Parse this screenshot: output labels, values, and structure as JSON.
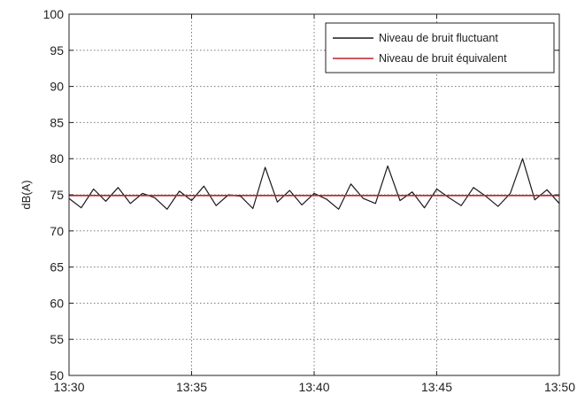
{
  "chart_data": {
    "type": "line",
    "title": "",
    "xlabel": "",
    "ylabel": "dB(A)",
    "x_ticks": [
      "13:30",
      "13:35",
      "13:40",
      "13:45",
      "13:50"
    ],
    "xlim": [
      "13:30",
      "13:50"
    ],
    "y_ticks": [
      50,
      55,
      60,
      65,
      70,
      75,
      80,
      85,
      90,
      95,
      100
    ],
    "ylim": [
      50,
      100
    ],
    "grid": true,
    "grid_style": "dotted",
    "legend_position": "top-right",
    "series": [
      {
        "name": "Niveau de bruit fluctuant",
        "color": "#1a1a1a",
        "x": [
          "13:30",
          "13:30:30",
          "13:31",
          "13:31:30",
          "13:32",
          "13:32:30",
          "13:33",
          "13:33:30",
          "13:34",
          "13:34:30",
          "13:35",
          "13:35:30",
          "13:36",
          "13:36:30",
          "13:37",
          "13:37:30",
          "13:38",
          "13:38:30",
          "13:39",
          "13:39:30",
          "13:40",
          "13:40:30",
          "13:41",
          "13:41:30",
          "13:42",
          "13:42:30",
          "13:43",
          "13:43:30",
          "13:44",
          "13:44:30",
          "13:45",
          "13:45:30",
          "13:46",
          "13:46:30",
          "13:47",
          "13:47:30",
          "13:48",
          "13:48:30",
          "13:49",
          "13:49:30",
          "13:50"
        ],
        "y": [
          74.5,
          73.2,
          75.8,
          74.1,
          76.0,
          73.8,
          75.2,
          74.6,
          73.0,
          75.5,
          74.2,
          76.2,
          73.5,
          75.0,
          74.8,
          73.1,
          78.8,
          74.0,
          75.6,
          73.6,
          75.2,
          74.4,
          73.0,
          76.5,
          74.5,
          73.8,
          79.0,
          74.2,
          75.4,
          73.2,
          75.8,
          74.6,
          73.5,
          76.0,
          74.8,
          73.4,
          75.2,
          80.0,
          74.3,
          75.7,
          73.8
        ]
      },
      {
        "name": "Niveau de bruit équivalent",
        "color": "#c0202a",
        "x": [
          "13:30",
          "13:50"
        ],
        "y": [
          74.9,
          74.9
        ]
      }
    ]
  }
}
